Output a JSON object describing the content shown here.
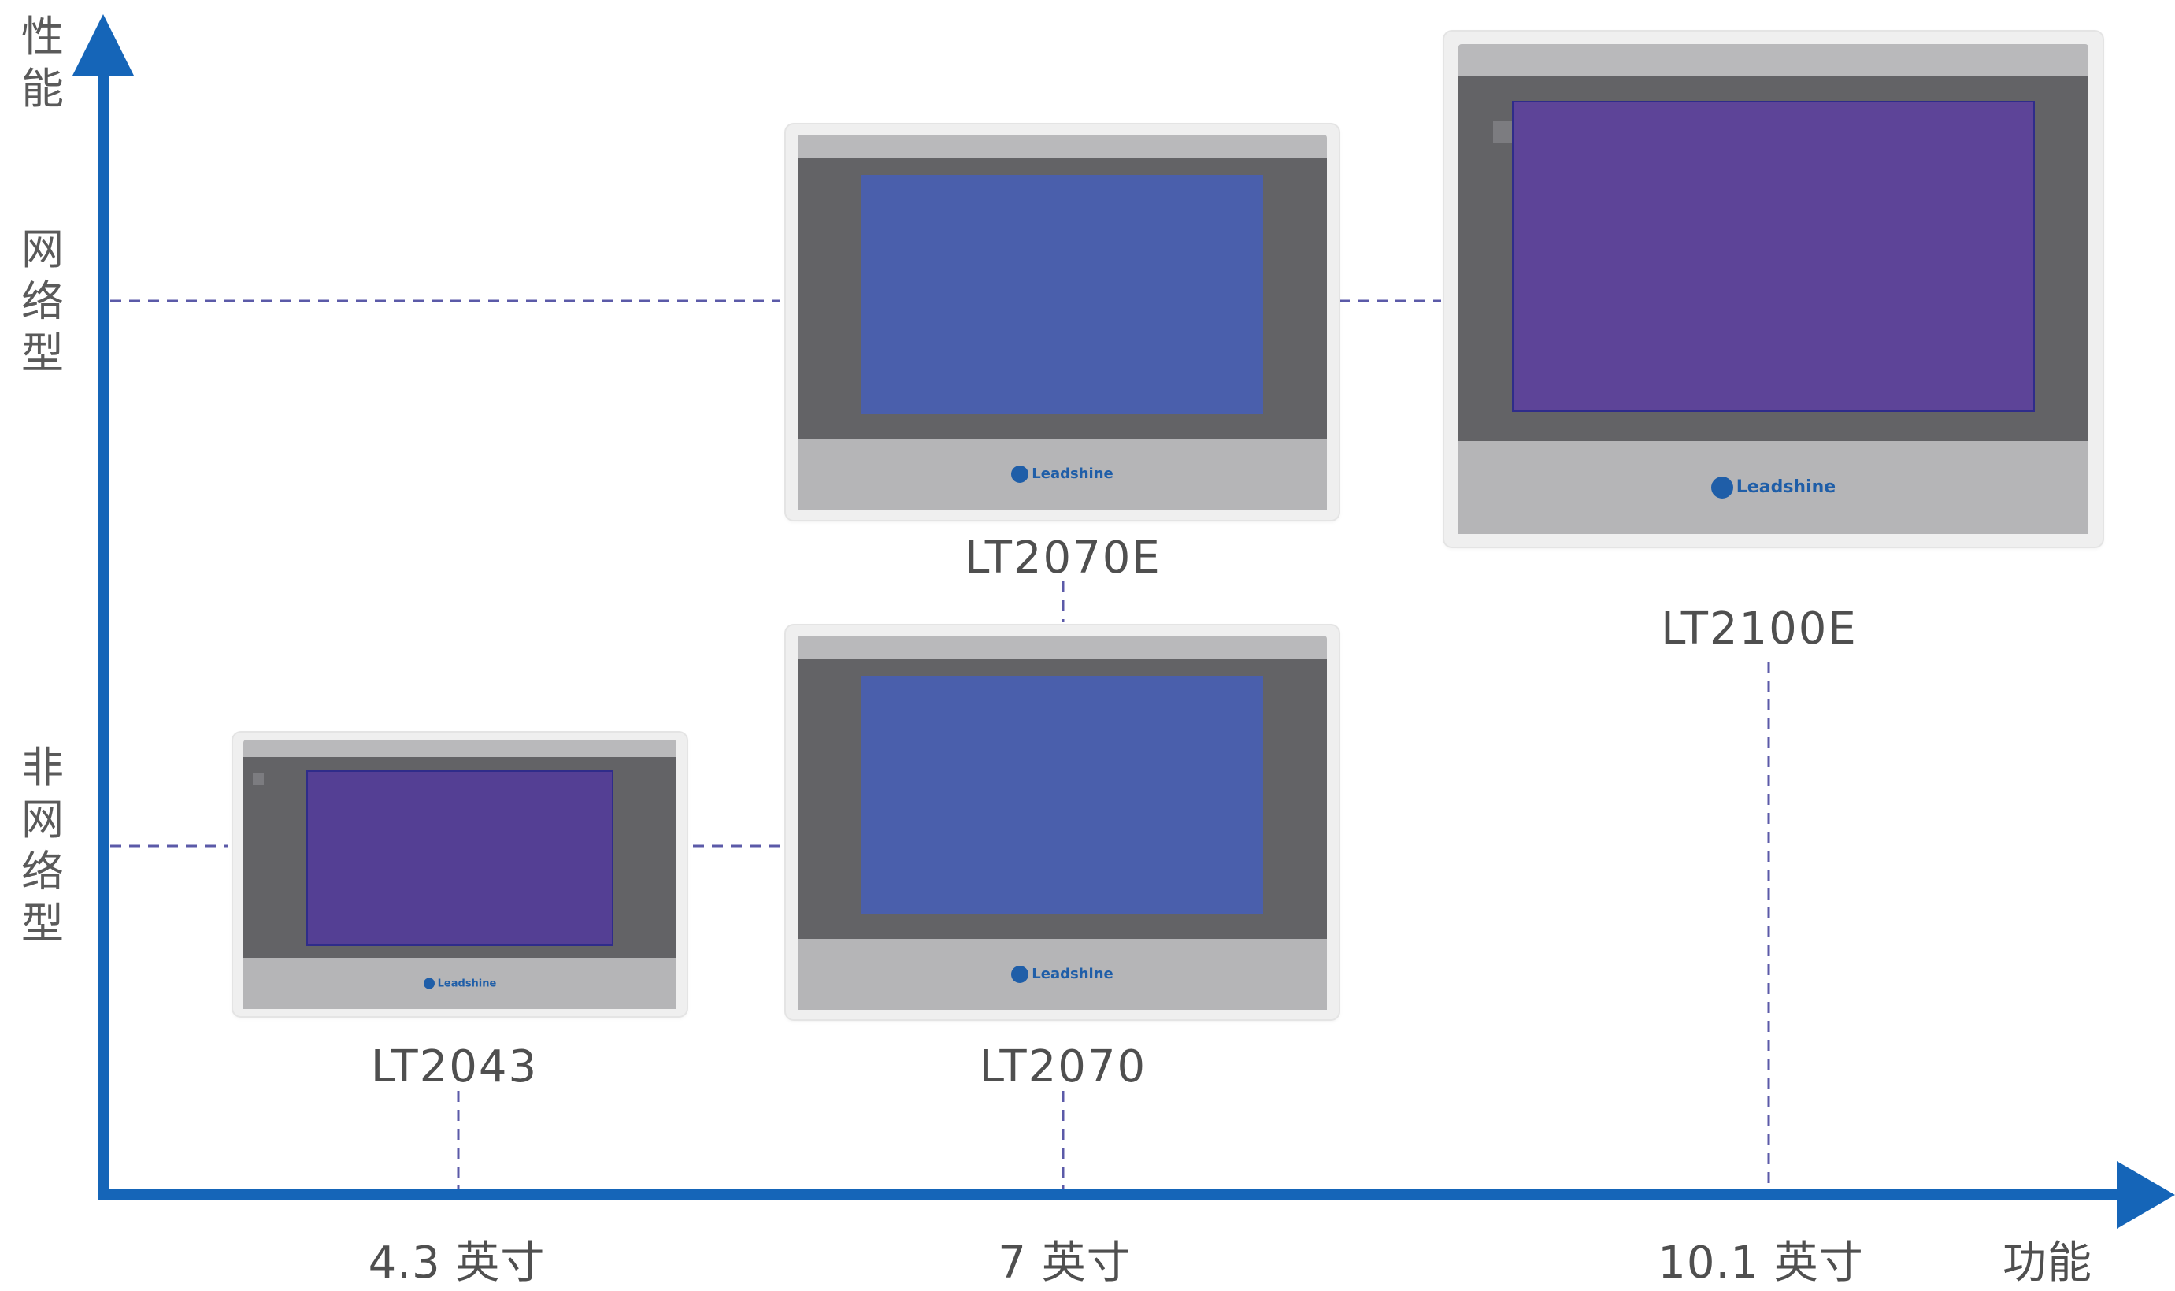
{
  "axes": {
    "y_label": "性能",
    "x_label": "功能",
    "y_categories": [
      "网络型",
      "非网络型"
    ],
    "x_categories": [
      "4.3 英寸",
      "7 英寸",
      "10.1 英寸"
    ]
  },
  "brand": "Leadshine",
  "colors": {
    "axis": "#1565b8",
    "guide": "#5b5aa8",
    "bezel": "#636366",
    "frame": "#b5b5b7",
    "screen_blue": "#4a5fac",
    "screen_purple": "#543f94",
    "screen_purple_large": "#5d4498"
  },
  "devices": [
    {
      "model": "LT2043",
      "size": "4.3 英寸",
      "type": "非网络型",
      "screen": "purple"
    },
    {
      "model": "LT2070",
      "size": "7 英寸",
      "type": "非网络型",
      "screen": "blue"
    },
    {
      "model": "LT2070E",
      "size": "7 英寸",
      "type": "网络型",
      "screen": "blue"
    },
    {
      "model": "LT2100E",
      "size": "10.1 英寸",
      "type": "网络型",
      "screen": "purple_large"
    }
  ]
}
